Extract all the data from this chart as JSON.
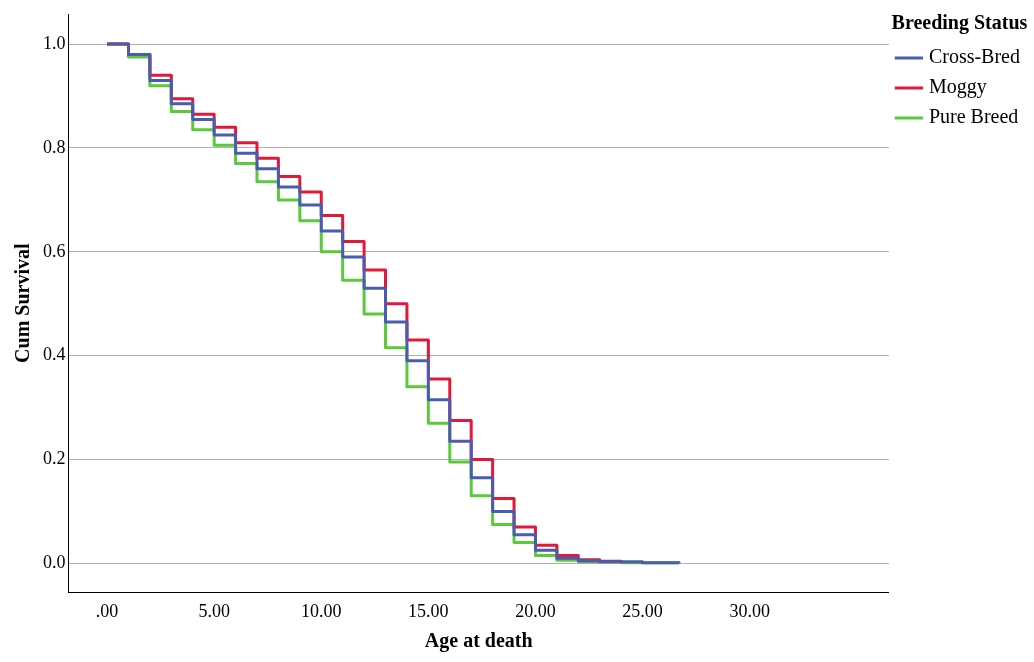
{
  "chart_data": {
    "type": "step",
    "xlabel": "Age at death",
    "ylabel": "Cum Survival",
    "legend_title": "Breeding Status",
    "legend": "right",
    "grid": "y",
    "marker": "none",
    "line_style": "solid",
    "xlim": [
      -1.8,
      36.5
    ],
    "ylim": [
      -0.056,
      1.058
    ],
    "xticks": [
      {
        "value": 0,
        "label": ".00"
      },
      {
        "value": 5,
        "label": "5.00"
      },
      {
        "value": 10,
        "label": "10.00"
      },
      {
        "value": 15,
        "label": "15.00"
      },
      {
        "value": 20,
        "label": "20.00"
      },
      {
        "value": 25,
        "label": "25.00"
      },
      {
        "value": 30,
        "label": "30.00"
      }
    ],
    "yticks": [
      {
        "value": 0,
        "label": "0.0"
      },
      {
        "value": 0.2,
        "label": "0.2"
      },
      {
        "value": 0.4,
        "label": "0.4"
      },
      {
        "value": 0.6,
        "label": "0.6"
      },
      {
        "value": 0.8,
        "label": "0.8"
      },
      {
        "value": 1,
        "label": "1.0"
      }
    ],
    "series": [
      {
        "name": "Cross-Bred",
        "color": "#4a5cb0",
        "x": [
          0,
          1,
          2,
          3,
          4,
          5,
          6,
          7,
          8,
          9,
          10,
          11,
          12,
          13,
          14,
          15,
          16,
          17,
          18,
          19,
          20,
          21,
          22,
          23,
          25,
          26.7
        ],
        "values": [
          1,
          0.98,
          0.93,
          0.885,
          0.855,
          0.825,
          0.79,
          0.76,
          0.725,
          0.69,
          0.64,
          0.59,
          0.53,
          0.465,
          0.39,
          0.315,
          0.235,
          0.165,
          0.1,
          0.055,
          0.025,
          0.01,
          0.005,
          0.003,
          0.001,
          0
        ]
      },
      {
        "name": "Moggy",
        "color": "#e0193a",
        "x": [
          0,
          1,
          2,
          3,
          4,
          5,
          6,
          7,
          8,
          9,
          10,
          11,
          12,
          13,
          14,
          15,
          16,
          17,
          18,
          19,
          20,
          21,
          22,
          23,
          24
        ],
        "values": [
          1,
          0.98,
          0.94,
          0.895,
          0.865,
          0.84,
          0.81,
          0.78,
          0.745,
          0.715,
          0.67,
          0.62,
          0.565,
          0.5,
          0.43,
          0.355,
          0.275,
          0.2,
          0.125,
          0.07,
          0.035,
          0.015,
          0.007,
          0.004,
          0.002
        ]
      },
      {
        "name": "Pure Breed",
        "color": "#5cc93a",
        "x": [
          0,
          1,
          2,
          3,
          4,
          5,
          6,
          7,
          8,
          9,
          10,
          11,
          12,
          13,
          14,
          15,
          16,
          17,
          18,
          19,
          20,
          21,
          22,
          24,
          26.7
        ],
        "values": [
          1,
          0.975,
          0.92,
          0.87,
          0.835,
          0.805,
          0.77,
          0.735,
          0.7,
          0.66,
          0.6,
          0.545,
          0.48,
          0.415,
          0.34,
          0.27,
          0.195,
          0.13,
          0.075,
          0.04,
          0.015,
          0.006,
          0.003,
          0.001,
          0
        ]
      }
    ]
  }
}
